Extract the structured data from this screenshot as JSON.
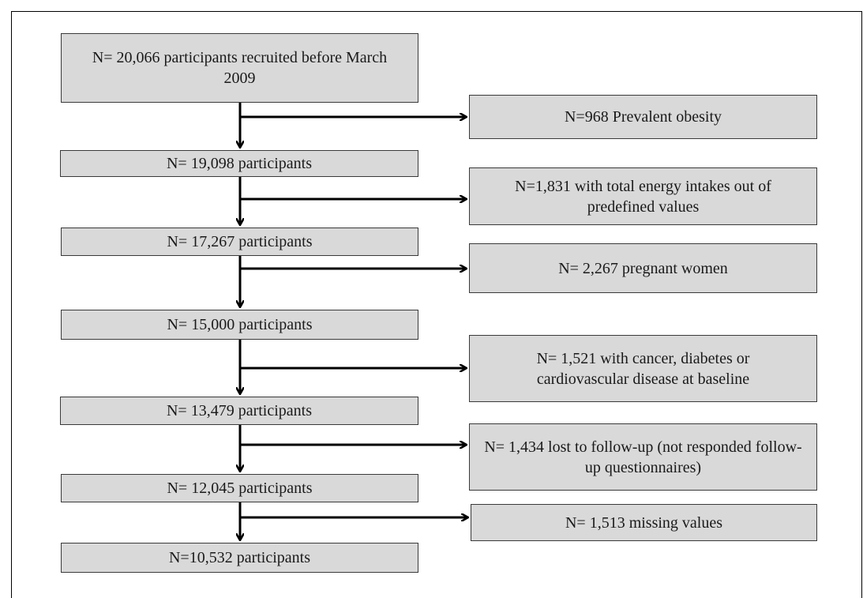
{
  "diagram": {
    "main_boxes": [
      {
        "id": "m1",
        "text": "N= 20,066 participants recruited before March 2009"
      },
      {
        "id": "m2",
        "text": "N= 19,098 participants"
      },
      {
        "id": "m3",
        "text": "N= 17,267 participants"
      },
      {
        "id": "m4",
        "text": "N= 15,000 participants"
      },
      {
        "id": "m5",
        "text": "N= 13,479 participants"
      },
      {
        "id": "m6",
        "text": "N= 12,045 participants"
      },
      {
        "id": "m7",
        "text": "N=10,532 participants"
      }
    ],
    "exclusion_boxes": [
      {
        "id": "e1",
        "text": "N=968 Prevalent obesity"
      },
      {
        "id": "e2",
        "text": "N=1,831 with total energy intakes out of predefined values"
      },
      {
        "id": "e3",
        "text": "N= 2,267 pregnant women"
      },
      {
        "id": "e4",
        "text": "N= 1,521 with cancer, diabetes or cardiovascular disease at baseline"
      },
      {
        "id": "e5",
        "text": "N= 1,434 lost to follow-up (not responded follow-up questionnaires)"
      },
      {
        "id": "e6",
        "text": "N= 1,513 missing values"
      }
    ]
  }
}
